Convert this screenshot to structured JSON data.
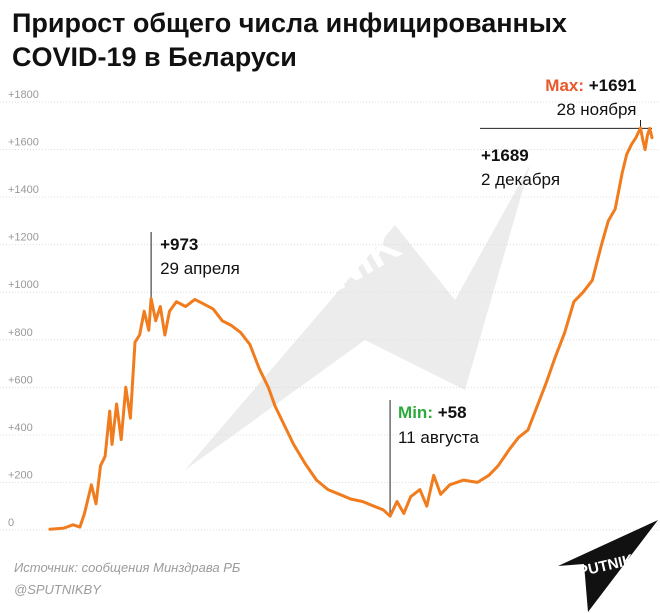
{
  "title_line1": "Прирост общего числа инфицированных",
  "title_line2": "COVID-19 в Беларуси",
  "source_line": "Источник: сообщения Минздрава РБ",
  "handle": "@SPUTNIKBY",
  "watermark": "SPUTNIK",
  "logo_text": "SPUTNIK",
  "colors": {
    "line": "#f07c1e",
    "max_label": "#e8582a",
    "min_label": "#2daa3c",
    "text": "#111111",
    "tick": "#999999",
    "grid": "#dddddd"
  },
  "chart_data": {
    "type": "line",
    "title": "Прирост общего числа инфицированных COVID-19 в Беларуси",
    "ylim": [
      0,
      1800
    ],
    "y_ticks": [
      0,
      200,
      400,
      600,
      800,
      1000,
      1200,
      1400,
      1600,
      1800
    ],
    "y_tick_labels": [
      "0",
      "+200",
      "+400",
      "+600",
      "+800",
      "+1000",
      "+1200",
      "+1400",
      "+1600",
      "+1800"
    ],
    "grid": true,
    "x_start": "2020-03-16",
    "x_end": "2020-12-03",
    "series": [
      {
        "points": [
          [
            "2020-03-16",
            3
          ],
          [
            "2020-03-22",
            8
          ],
          [
            "2020-03-26",
            22
          ],
          [
            "2020-03-29",
            12
          ],
          [
            "2020-03-31",
            70
          ],
          [
            "2020-04-03",
            190
          ],
          [
            "2020-04-05",
            110
          ],
          [
            "2020-04-07",
            270
          ],
          [
            "2020-04-09",
            310
          ],
          [
            "2020-04-11",
            500
          ],
          [
            "2020-04-12",
            360
          ],
          [
            "2020-04-14",
            530
          ],
          [
            "2020-04-16",
            380
          ],
          [
            "2020-04-18",
            600
          ],
          [
            "2020-04-20",
            470
          ],
          [
            "2020-04-22",
            790
          ],
          [
            "2020-04-24",
            820
          ],
          [
            "2020-04-26",
            920
          ],
          [
            "2020-04-28",
            840
          ],
          [
            "2020-04-29",
            973
          ],
          [
            "2020-05-01",
            880
          ],
          [
            "2020-05-03",
            940
          ],
          [
            "2020-05-05",
            820
          ],
          [
            "2020-05-07",
            920
          ],
          [
            "2020-05-10",
            960
          ],
          [
            "2020-05-14",
            940
          ],
          [
            "2020-05-18",
            970
          ],
          [
            "2020-05-22",
            950
          ],
          [
            "2020-05-26",
            930
          ],
          [
            "2020-05-30",
            880
          ],
          [
            "2020-06-03",
            860
          ],
          [
            "2020-06-07",
            830
          ],
          [
            "2020-06-11",
            780
          ],
          [
            "2020-06-15",
            680
          ],
          [
            "2020-06-19",
            600
          ],
          [
            "2020-06-22",
            520
          ],
          [
            "2020-06-26",
            440
          ],
          [
            "2020-06-30",
            360
          ],
          [
            "2020-07-05",
            280
          ],
          [
            "2020-07-10",
            210
          ],
          [
            "2020-07-15",
            170
          ],
          [
            "2020-07-20",
            150
          ],
          [
            "2020-07-25",
            130
          ],
          [
            "2020-07-30",
            120
          ],
          [
            "2020-08-04",
            100
          ],
          [
            "2020-08-08",
            85
          ],
          [
            "2020-08-11",
            58
          ],
          [
            "2020-08-14",
            120
          ],
          [
            "2020-08-17",
            70
          ],
          [
            "2020-08-20",
            140
          ],
          [
            "2020-08-24",
            170
          ],
          [
            "2020-08-27",
            100
          ],
          [
            "2020-08-30",
            230
          ],
          [
            "2020-09-02",
            150
          ],
          [
            "2020-09-06",
            190
          ],
          [
            "2020-09-12",
            210
          ],
          [
            "2020-09-18",
            200
          ],
          [
            "2020-09-23",
            230
          ],
          [
            "2020-09-27",
            270
          ],
          [
            "2020-10-02",
            340
          ],
          [
            "2020-10-06",
            390
          ],
          [
            "2020-10-10",
            420
          ],
          [
            "2020-10-14",
            520
          ],
          [
            "2020-10-18",
            620
          ],
          [
            "2020-10-22",
            730
          ],
          [
            "2020-10-26",
            830
          ],
          [
            "2020-10-30",
            960
          ],
          [
            "2020-11-03",
            1000
          ],
          [
            "2020-11-07",
            1050
          ],
          [
            "2020-11-11",
            1200
          ],
          [
            "2020-11-14",
            1300
          ],
          [
            "2020-11-17",
            1350
          ],
          [
            "2020-11-20",
            1500
          ],
          [
            "2020-11-22",
            1580
          ],
          [
            "2020-11-24",
            1620
          ],
          [
            "2020-11-26",
            1650
          ],
          [
            "2020-11-28",
            1691
          ],
          [
            "2020-11-29",
            1640
          ],
          [
            "2020-11-30",
            1600
          ],
          [
            "2020-12-01",
            1660
          ],
          [
            "2020-12-02",
            1689
          ],
          [
            "2020-12-03",
            1650
          ]
        ]
      }
    ],
    "annotations": [
      {
        "date": "2020-04-29",
        "value": 973,
        "value_label": "+973",
        "date_label": "29 апреля"
      },
      {
        "date": "2020-08-11",
        "value": 58,
        "prefix": "Min:",
        "value_label": "+58",
        "date_label": "11 августа"
      },
      {
        "date": "2020-11-28",
        "value": 1691,
        "prefix": "Max:",
        "value_label": "+1691",
        "date_label": "28 ноября"
      },
      {
        "date": "2020-12-02",
        "value": 1689,
        "value_label": "+1689",
        "date_label": "2 декабря"
      }
    ]
  }
}
